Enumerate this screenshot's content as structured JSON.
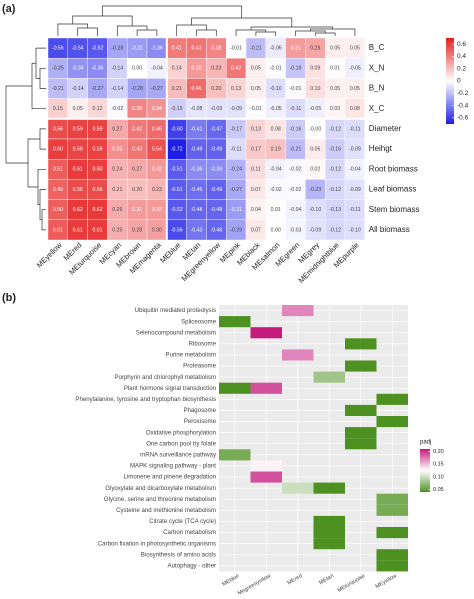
{
  "chart_data": [
    {
      "type": "heatmap",
      "panel_label": "(a)",
      "x": [
        "MEyellow",
        "MEred",
        "MEturquoise",
        "MEcyan",
        "MEbrown",
        "MEmagenta",
        "MEblue",
        "MEtan",
        "MEgreenyellow",
        "MEpink",
        "MEblack",
        "MEsalmon",
        "MEgreen",
        "MEgrey",
        "MEmidnightblue",
        "MEpurple"
      ],
      "y": [
        "B_C",
        "X_N",
        "B_N",
        "X_C",
        "Diameter",
        "Heihgt",
        "Root biomass",
        "Leaf biomass",
        "Stem biomass",
        "All biomass"
      ],
      "values": [
        [
          -0.56,
          -0.54,
          -0.52,
          -0.28,
          -0.31,
          -0.36,
          0.41,
          0.43,
          0.38,
          -0.01,
          -0.21,
          -0.06,
          0.31,
          0.28,
          0.05,
          0.05
        ],
        [
          -0.25,
          -0.34,
          -0.36,
          -0.14,
          0,
          -0.04,
          0.14,
          0.32,
          0.23,
          0.42,
          0.05,
          -0.01,
          -0.18,
          0.09,
          0.01,
          -0.05
        ],
        [
          -0.21,
          -0.14,
          -0.27,
          -0.14,
          -0.28,
          -0.27,
          0.21,
          0.46,
          0.2,
          0.13,
          0.05,
          -0.1,
          -0.01,
          0.1,
          0.05,
          0.05
        ],
        [
          0.15,
          0.05,
          0.12,
          -0.02,
          0.38,
          0.34,
          -0.15,
          -0.08,
          -0.09,
          -0.09,
          -0.01,
          -0.05,
          -0.11,
          -0.05,
          0.03,
          0.08
        ],
        [
          0.56,
          0.59,
          0.59,
          0.27,
          0.42,
          0.46,
          -0.6,
          -0.41,
          -0.47,
          -0.17,
          0.13,
          0.08,
          -0.16,
          0,
          -0.12,
          -0.11
        ],
        [
          0.6,
          0.58,
          0.59,
          0.35,
          0.43,
          0.54,
          -0.72,
          -0.49,
          -0.49,
          -0.11,
          0.17,
          0.19,
          -0.21,
          0.06,
          -0.16,
          -0.09
        ],
        [
          0.51,
          0.61,
          0.6,
          0.24,
          0.27,
          0.32,
          -0.51,
          -0.36,
          -0.36,
          -0.24,
          0.11,
          -0.04,
          -0.02,
          0.02,
          -0.12,
          -0.04
        ],
        [
          0.49,
          0.56,
          0.56,
          0.21,
          0.2,
          0.23,
          -0.51,
          -0.45,
          -0.49,
          -0.27,
          0.07,
          -0.02,
          -0.02,
          -0.23,
          -0.12,
          -0.09
        ],
        [
          0.5,
          0.62,
          0.62,
          0.26,
          0.31,
          0.32,
          -0.52,
          -0.48,
          -0.48,
          -0.31,
          0.04,
          0.01,
          -0.04,
          -0.1,
          -0.13,
          -0.11
        ],
        [
          0.51,
          0.61,
          0.61,
          0.25,
          0.28,
          0.3,
          -0.56,
          -0.43,
          -0.48,
          -0.29,
          0.07,
          0,
          -0.03,
          -0.09,
          -0.12,
          -0.1
        ]
      ],
      "value_labels": [
        [
          "-0.56",
          "-0.54",
          "-0.52",
          "-0.28",
          "-0.31",
          "-0.36",
          "0.41",
          "0.43",
          "0.38",
          "-0.01",
          "-0.21",
          "-0.06",
          "0.31",
          "0.28",
          "0.05",
          "0.05"
        ],
        [
          "-0.25",
          "-0.34",
          "-0.36",
          "-0.14",
          "0.00",
          "-0.04",
          "0.14",
          "0.32",
          "0.23",
          "0.42",
          "0.05",
          "-0.01",
          "-0.18",
          "0.09",
          "0.01",
          "-0.05"
        ],
        [
          "-0.21",
          "-0.14",
          "-0.27",
          "-0.14",
          "-0.28",
          "-0.27",
          "0.21",
          "0.46",
          "0.20",
          "0.13",
          "0.05",
          "-0.10",
          "-0.01",
          "0.10",
          "0.05",
          "0.05"
        ],
        [
          "0.15",
          "0.05",
          "0.12",
          "-0.02",
          "0.38",
          "0.34",
          "-0.15",
          "-0.08",
          "-0.09",
          "-0.09",
          "-0.01",
          "-0.05",
          "-0.11",
          "-0.05",
          "0.03",
          "0.08"
        ],
        [
          "0.56",
          "0.59",
          "0.59",
          "0.27",
          "0.42",
          "0.46",
          "-0.60",
          "-0.41",
          "-0.47",
          "-0.17",
          "0.13",
          "0.08",
          "-0.16",
          "-0.00",
          "-0.12",
          "-0.11"
        ],
        [
          "0.60",
          "0.58",
          "0.59",
          "0.35",
          "0.43",
          "0.54",
          "-0.72",
          "-0.49",
          "-0.49",
          "-0.11",
          "0.17",
          "0.19",
          "-0.21",
          "0.06",
          "-0.16",
          "-0.09"
        ],
        [
          "0.51",
          "0.61",
          "0.60",
          "0.24",
          "0.27",
          "0.32",
          "-0.51",
          "-0.36",
          "-0.36",
          "-0.24",
          "0.11",
          "-0.04",
          "-0.02",
          "0.02",
          "-0.12",
          "-0.04"
        ],
        [
          "0.49",
          "0.56",
          "0.56",
          "0.21",
          "0.20",
          "0.23",
          "-0.51",
          "-0.45",
          "-0.49",
          "-0.27",
          "0.07",
          "-0.02",
          "-0.02",
          "-0.23",
          "-0.12",
          "-0.09"
        ],
        [
          "0.50",
          "0.62",
          "0.62",
          "0.26",
          "0.31",
          "0.32",
          "-0.52",
          "-0.48",
          "-0.48",
          "-0.31",
          "0.04",
          "0.01",
          "-0.04",
          "-0.10",
          "-0.13",
          "-0.11"
        ],
        [
          "0.51",
          "0.61",
          "0.61",
          "0.25",
          "0.28",
          "0.30",
          "-0.56",
          "-0.43",
          "-0.48",
          "-0.29",
          "0.07",
          "0.00",
          "-0.03",
          "-0.09",
          "-0.12",
          "-0.10"
        ]
      ],
      "colors": [
        "#1e1ee6",
        "#ffffff",
        "#e61e1e"
      ],
      "clim": [
        -0.7,
        0.7
      ],
      "cticks": [
        0.6,
        0.4,
        0.2,
        0,
        -0.2,
        -0.4,
        -0.6
      ]
    },
    {
      "type": "heatmap",
      "panel_label": "(b)",
      "x": [
        "MEblue",
        "Megreenyellow",
        "MEred",
        "MEtan",
        "MEturquoise",
        "MEyellow"
      ],
      "y": [
        "Ubiquitin mediated proteolysis",
        "Spliceosome",
        "Selenocompound metabolism",
        "Ribosome",
        "Purine metabolism",
        "Proteasome",
        "Porphyrin and chlorophyll metabolism",
        "Plant hormone signal transduction",
        "Phenylalanine, tyrosine and tryptophan biosynthesis",
        "Phagosome",
        "Peroxisome",
        "Oxidative phosphorylation",
        "One carbon pool by folate",
        "mRNA surveillance pathway",
        "MAPK signaling pathway - plant",
        "Limonene and pinene degradation",
        "Glyoxylate and dicarboxylate metabolism",
        "Glycine, serine and threonine metabolism",
        "Cysteine and methionine metabolism",
        "Citrate cycle (TCA cycle)",
        "Carbon metabolism",
        "Carbon fixation in photosynthetic organisms",
        "Biosynthesis of amino acids",
        "Autophagy - other"
      ],
      "values": [
        [
          null,
          null,
          0.17,
          null,
          null,
          null
        ],
        [
          0.04,
          null,
          null,
          null,
          null,
          null
        ],
        [
          null,
          0.21,
          null,
          null,
          null,
          null
        ],
        [
          null,
          null,
          null,
          null,
          0.04,
          null
        ],
        [
          null,
          null,
          0.17,
          null,
          null,
          null
        ],
        [
          null,
          null,
          null,
          null,
          0.04,
          null
        ],
        [
          null,
          null,
          null,
          0.08,
          null,
          null
        ],
        [
          0.04,
          0.19,
          null,
          null,
          null,
          null
        ],
        [
          null,
          null,
          null,
          null,
          null,
          0.04
        ],
        [
          null,
          null,
          null,
          null,
          0.04,
          null
        ],
        [
          null,
          null,
          null,
          null,
          null,
          0.04
        ],
        [
          null,
          null,
          null,
          null,
          0.04,
          null
        ],
        [
          null,
          null,
          null,
          null,
          0.04,
          null
        ],
        [
          0.06,
          null,
          null,
          null,
          null,
          null
        ],
        [
          null,
          0.13,
          null,
          null,
          null,
          null
        ],
        [
          null,
          0.19,
          null,
          null,
          null,
          null
        ],
        [
          null,
          null,
          0.1,
          0.04,
          null,
          null
        ],
        [
          null,
          null,
          null,
          null,
          null,
          0.06
        ],
        [
          null,
          null,
          null,
          null,
          null,
          0.06
        ],
        [
          null,
          null,
          null,
          0.04,
          null,
          null
        ],
        [
          null,
          null,
          null,
          0.04,
          null,
          0.04
        ],
        [
          null,
          null,
          null,
          0.04,
          null,
          null
        ],
        [
          null,
          null,
          null,
          null,
          null,
          0.04
        ],
        [
          null,
          null,
          null,
          null,
          null,
          0.04
        ]
      ],
      "colors": [
        "#4d9221",
        "#ffffff",
        "#c51b7d"
      ],
      "legend_title": "padj",
      "clim": [
        0.04,
        0.21
      ],
      "cticks": [
        {
          "value": 0.2,
          "label": "0.20"
        },
        {
          "value": 0.15,
          "label": "0.15"
        },
        {
          "value": 0.1,
          "label": "0.10"
        },
        {
          "value": 0.05,
          "label": "0.05"
        }
      ],
      "grid": true
    }
  ]
}
